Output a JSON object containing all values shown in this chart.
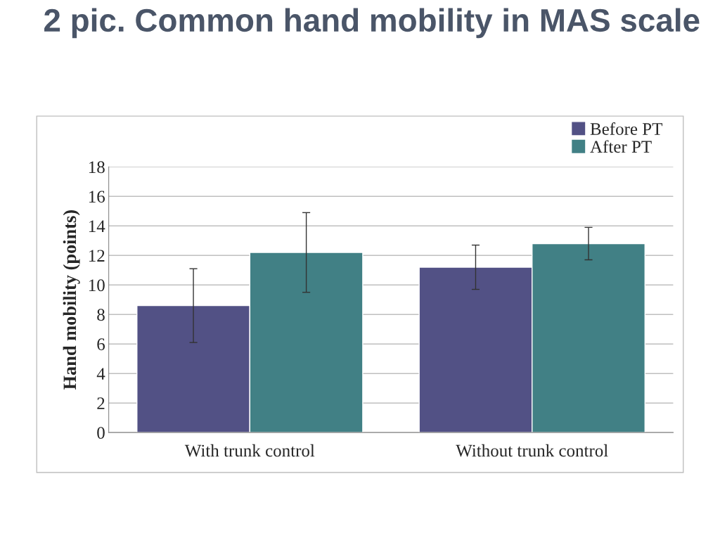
{
  "chart_data": {
    "type": "bar",
    "title": "2 pic. Common hand mobility in MAS scale",
    "ylabel": "Hand mobility (points)",
    "categories": [
      "With trunk control",
      "Without trunk control"
    ],
    "series": [
      {
        "name": "Before PT",
        "color": "#525185",
        "values": [
          8.6,
          11.2
        ],
        "errors": [
          2.5,
          1.5
        ]
      },
      {
        "name": "After PT",
        "color": "#418085",
        "values": [
          12.2,
          12.8
        ],
        "errors": [
          2.7,
          1.1
        ]
      }
    ],
    "ylim": [
      0,
      18
    ],
    "yticks": [
      0,
      2,
      4,
      6,
      8,
      10,
      12,
      14,
      16,
      18
    ],
    "grid": "y",
    "legend": "top right"
  }
}
